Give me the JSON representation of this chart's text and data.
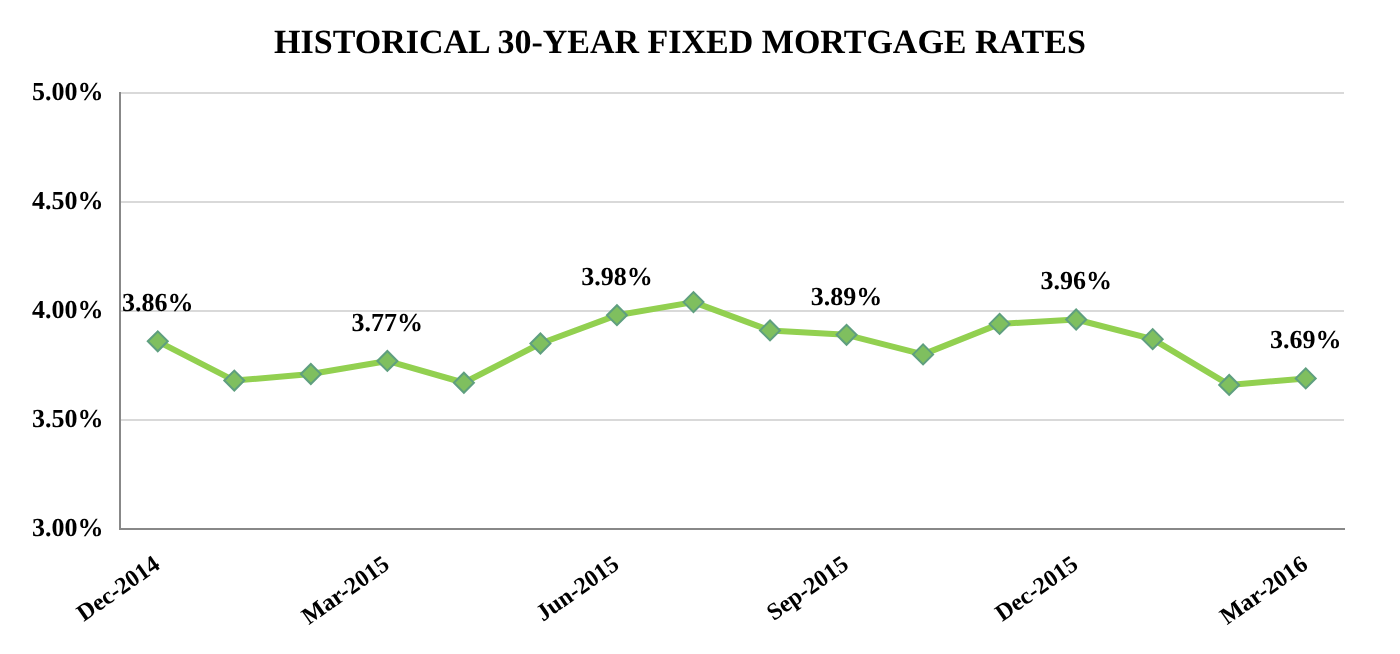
{
  "chart_data": {
    "type": "line",
    "title": "HISTORICAL 30-YEAR FIXED MORTGAGE RATES",
    "categories": [
      "Dec-2014",
      null,
      null,
      "Mar-2015",
      null,
      null,
      "Jun-2015",
      null,
      null,
      "Sep-2015",
      null,
      null,
      "Dec-2015",
      null,
      null,
      "Mar-2016"
    ],
    "series": [
      {
        "color": "#92d050",
        "values": [
          3.86,
          3.68,
          3.71,
          3.77,
          3.67,
          3.85,
          3.98,
          4.04,
          3.91,
          3.89,
          3.8,
          3.94,
          3.96,
          3.87,
          3.66,
          3.69
        ],
        "value_labels": [
          "3.86%",
          null,
          null,
          "3.77%",
          null,
          null,
          "3.98%",
          null,
          null,
          "3.89%",
          null,
          null,
          "3.96%",
          null,
          null,
          "3.69%"
        ]
      }
    ],
    "ylim": [
      3,
      5
    ],
    "yticks": [
      {
        "value": 3,
        "label": "3.00%"
      },
      {
        "value": 3.5,
        "label": "3.50%"
      },
      {
        "value": 4,
        "label": "4.00%"
      },
      {
        "value": 4.5,
        "label": "4.50%"
      },
      {
        "value": 5,
        "label": "5.00%"
      }
    ],
    "grid": "y",
    "legend": false,
    "marker": "diamond",
    "line_style": "solid"
  }
}
